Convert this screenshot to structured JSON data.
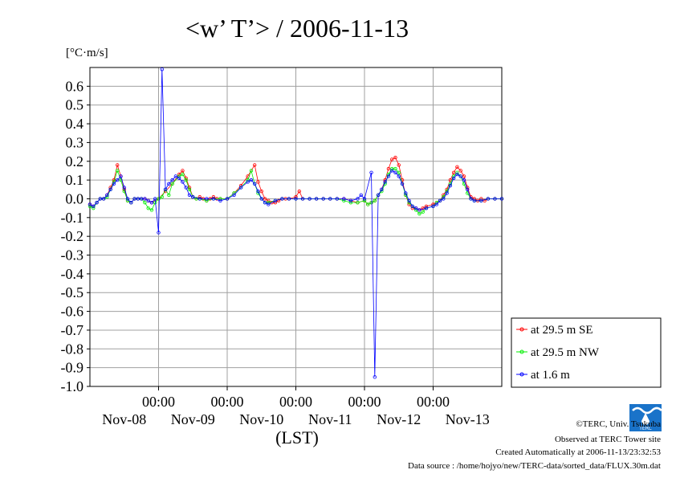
{
  "header": {
    "title": "<w’ T’> / 2006-11-13",
    "unit": "[°C·m/s]"
  },
  "footer": {
    "credit": "©TERC, Univ. Tsukuba",
    "observed": "Observed at TERC Tower site",
    "created": "Created Automatically at 2006-11-13/23:32:53",
    "source": "Data source : /home/hojyo/new/TERC-data/sorted_data/FLUX.30m.dat",
    "logo_text": "TERC"
  },
  "colors": {
    "se": "#ff0000",
    "nw": "#00ee00",
    "low": "#0000ff",
    "grid": "#a0a0a0",
    "logo": "#1a73c9"
  },
  "chart_data": {
    "type": "line",
    "title": "<w’ T’> / 2006-11-13",
    "ylabel": "[°C·m/s]",
    "xlabel": "(LST)",
    "x_unit": "days since 2006-11-07 00:00 LST",
    "xlim": [
      0,
      6
    ],
    "ylim": [
      -1.0,
      0.7
    ],
    "y_ticks": [
      -1.0,
      -0.9,
      -0.8,
      -0.7,
      -0.6,
      -0.5,
      -0.4,
      -0.3,
      -0.2,
      -0.1,
      0.0,
      0.1,
      0.2,
      0.3,
      0.4,
      0.5,
      0.6
    ],
    "y_tick_labels": [
      "-1.0",
      "-0.9",
      "-0.8",
      "-0.7",
      "-0.6",
      "-0.5",
      "-0.4",
      "-0.3",
      "-0.2",
      "-0.1",
      "0.0",
      "0.1",
      "0.2",
      "0.3",
      "0.4",
      "0.5",
      "0.6"
    ],
    "x_ticks": [
      1,
      2,
      3,
      4,
      5
    ],
    "x_tick_time_labels": [
      "00:00",
      "00:00",
      "00:00",
      "00:00",
      "00:00"
    ],
    "x_tick_date_labels": [
      "Nov-08",
      "Nov-09",
      "Nov-10",
      "Nov-11",
      "Nov-12",
      "Nov-13"
    ],
    "grid": true,
    "legend_position": "right, bottom",
    "series": [
      {
        "name": "at 29.5 m SE",
        "x": [
          0.0,
          0.05,
          0.1,
          0.15,
          0.2,
          0.25,
          0.3,
          0.35,
          0.4,
          0.45,
          0.5,
          0.55,
          0.6,
          0.65,
          0.7,
          0.75,
          0.8,
          0.85,
          0.9,
          1.0,
          1.1,
          1.2,
          1.3,
          1.35,
          1.4,
          1.45,
          1.5,
          1.55,
          1.6,
          1.65,
          1.7,
          1.75,
          1.8,
          1.85,
          1.9,
          2.0,
          2.1,
          2.2,
          2.3,
          2.4,
          2.45,
          2.5,
          2.55,
          2.6,
          2.65,
          2.7,
          2.75,
          2.8,
          2.85,
          2.9,
          3.0,
          3.05,
          3.1,
          3.2,
          3.3,
          3.4,
          3.5,
          3.6,
          3.7,
          3.8,
          3.9,
          4.0,
          4.05,
          4.1,
          4.15,
          4.2,
          4.25,
          4.3,
          4.35,
          4.4,
          4.45,
          4.5,
          4.55,
          4.6,
          4.65,
          4.7,
          4.75,
          4.8,
          4.85,
          4.9,
          5.0,
          5.05,
          5.1,
          5.15,
          5.2,
          5.25,
          5.3,
          5.35,
          5.4,
          5.45,
          5.5,
          5.55,
          5.6,
          5.65,
          5.7,
          5.75,
          5.8,
          5.9,
          6.0
        ],
        "values": [
          -0.03,
          -0.04,
          -0.02,
          0.0,
          0.0,
          0.02,
          0.06,
          0.1,
          0.18,
          0.12,
          0.05,
          -0.01,
          -0.02,
          0.0,
          0.0,
          0.0,
          0.0,
          -0.01,
          -0.02,
          0.0,
          0.04,
          0.08,
          0.13,
          0.15,
          0.11,
          0.06,
          0.01,
          0.0,
          0.01,
          0.0,
          -0.01,
          0.0,
          0.01,
          0.0,
          0.0,
          0.0,
          0.03,
          0.07,
          0.12,
          0.18,
          0.09,
          0.04,
          0.0,
          -0.01,
          -0.02,
          -0.02,
          -0.01,
          0.0,
          0.0,
          0.0,
          0.01,
          0.04,
          0.0,
          0.0,
          0.0,
          0.0,
          0.0,
          0.0,
          0.0,
          -0.01,
          -0.02,
          -0.01,
          -0.03,
          -0.02,
          -0.01,
          0.02,
          0.05,
          0.1,
          0.16,
          0.21,
          0.22,
          0.18,
          0.1,
          0.02,
          -0.03,
          -0.05,
          -0.05,
          -0.06,
          -0.05,
          -0.04,
          -0.03,
          -0.02,
          -0.01,
          0.02,
          0.05,
          0.1,
          0.14,
          0.17,
          0.15,
          0.12,
          0.06,
          0.01,
          0.0,
          -0.01,
          0.0,
          -0.01,
          0.0,
          0.0,
          0.0
        ]
      },
      {
        "name": "at 29.5 m NW",
        "x": [
          0.0,
          0.05,
          0.1,
          0.15,
          0.2,
          0.25,
          0.3,
          0.35,
          0.4,
          0.45,
          0.5,
          0.55,
          0.6,
          0.65,
          0.7,
          0.75,
          0.8,
          0.85,
          0.9,
          0.95,
          1.0,
          1.05,
          1.1,
          1.15,
          1.2,
          1.3,
          1.35,
          1.4,
          1.45,
          1.5,
          1.55,
          1.6,
          1.7,
          1.8,
          1.9,
          2.0,
          2.1,
          2.2,
          2.3,
          2.35,
          2.4,
          2.45,
          2.5,
          2.55,
          2.6,
          2.7,
          2.8,
          2.9,
          3.0,
          3.1,
          3.2,
          3.3,
          3.4,
          3.5,
          3.6,
          3.7,
          3.8,
          3.9,
          4.0,
          4.05,
          4.1,
          4.15,
          4.2,
          4.25,
          4.3,
          4.35,
          4.4,
          4.45,
          4.5,
          4.55,
          4.6,
          4.65,
          4.7,
          4.75,
          4.8,
          4.85,
          4.9,
          5.0,
          5.05,
          5.1,
          5.15,
          5.2,
          5.25,
          5.3,
          5.35,
          5.4,
          5.45,
          5.5,
          5.55,
          5.6,
          5.7,
          5.8,
          5.9,
          6.0
        ],
        "values": [
          -0.04,
          -0.05,
          -0.02,
          0.0,
          0.0,
          0.01,
          0.05,
          0.09,
          0.15,
          0.1,
          0.04,
          -0.01,
          -0.02,
          0.0,
          0.0,
          0.0,
          -0.02,
          -0.05,
          -0.06,
          -0.02,
          0.0,
          0.01,
          0.05,
          0.02,
          0.08,
          0.12,
          0.13,
          0.1,
          0.05,
          0.01,
          0.0,
          0.0,
          -0.01,
          0.0,
          0.0,
          0.0,
          0.03,
          0.06,
          0.1,
          0.15,
          0.08,
          0.03,
          0.0,
          -0.02,
          -0.02,
          -0.01,
          0.0,
          0.0,
          0.0,
          0.0,
          0.0,
          0.0,
          0.0,
          0.0,
          0.0,
          -0.01,
          -0.02,
          -0.02,
          -0.01,
          -0.03,
          -0.02,
          -0.01,
          0.02,
          0.04,
          0.08,
          0.13,
          0.16,
          0.16,
          0.14,
          0.08,
          0.02,
          -0.02,
          -0.04,
          -0.06,
          -0.08,
          -0.07,
          -0.05,
          -0.04,
          -0.02,
          -0.01,
          0.01,
          0.04,
          0.08,
          0.12,
          0.14,
          0.12,
          0.08,
          0.03,
          0.0,
          -0.01,
          -0.01,
          0.0,
          0.0,
          0.0
        ]
      },
      {
        "name": "at 1.6 m",
        "x": [
          0.0,
          0.05,
          0.1,
          0.15,
          0.2,
          0.25,
          0.3,
          0.35,
          0.4,
          0.45,
          0.5,
          0.55,
          0.6,
          0.65,
          0.7,
          0.75,
          0.8,
          0.85,
          0.9,
          0.95,
          1.0,
          1.05,
          1.1,
          1.15,
          1.2,
          1.25,
          1.3,
          1.35,
          1.4,
          1.45,
          1.5,
          1.6,
          1.7,
          1.8,
          1.9,
          2.0,
          2.1,
          2.2,
          2.3,
          2.35,
          2.4,
          2.45,
          2.5,
          2.55,
          2.6,
          2.7,
          2.8,
          2.9,
          3.0,
          3.1,
          3.2,
          3.3,
          3.4,
          3.5,
          3.6,
          3.7,
          3.8,
          3.9,
          3.95,
          4.0,
          4.1,
          4.15,
          4.2,
          4.25,
          4.3,
          4.35,
          4.4,
          4.45,
          4.5,
          4.55,
          4.6,
          4.65,
          4.7,
          4.75,
          4.8,
          4.9,
          5.0,
          5.05,
          5.1,
          5.15,
          5.2,
          5.25,
          5.3,
          5.35,
          5.4,
          5.45,
          5.5,
          5.55,
          5.6,
          5.7,
          5.8,
          5.9,
          6.0
        ],
        "values": [
          -0.03,
          -0.04,
          -0.02,
          0.0,
          0.0,
          0.02,
          0.05,
          0.08,
          0.1,
          0.12,
          0.06,
          0.0,
          -0.02,
          0.0,
          0.0,
          0.0,
          0.0,
          -0.01,
          -0.02,
          0.0,
          -0.18,
          0.69,
          0.05,
          0.08,
          0.1,
          0.12,
          0.11,
          0.09,
          0.06,
          0.02,
          0.01,
          0.0,
          0.0,
          0.0,
          -0.01,
          0.0,
          0.02,
          0.06,
          0.09,
          0.1,
          0.08,
          0.04,
          0.0,
          -0.02,
          -0.03,
          -0.01,
          0.0,
          0.0,
          0.0,
          0.0,
          0.0,
          0.0,
          0.0,
          0.0,
          0.0,
          0.0,
          -0.01,
          0.0,
          0.02,
          0.0,
          0.14,
          -0.95,
          0.02,
          0.05,
          0.09,
          0.12,
          0.15,
          0.14,
          0.12,
          0.08,
          0.03,
          -0.01,
          -0.04,
          -0.05,
          -0.06,
          -0.05,
          -0.04,
          -0.03,
          -0.01,
          0.0,
          0.03,
          0.07,
          0.11,
          0.13,
          0.12,
          0.1,
          0.05,
          0.0,
          -0.01,
          -0.01,
          0.0,
          0.0,
          0.0
        ]
      }
    ]
  }
}
